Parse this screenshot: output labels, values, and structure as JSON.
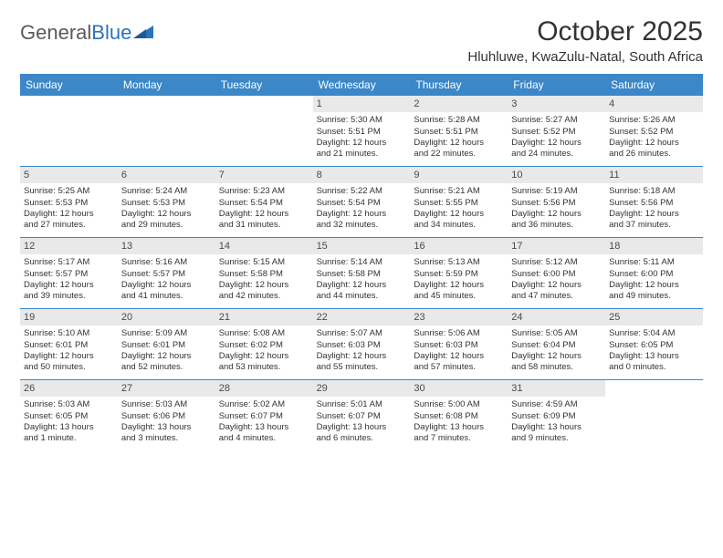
{
  "logo": {
    "text_gray": "General",
    "text_blue": "Blue"
  },
  "header": {
    "month_title": "October 2025",
    "location": "Hluhluwe, KwaZulu-Natal, South Africa"
  },
  "colors": {
    "header_bar": "#3b87c8",
    "daynum_bg": "#e9e9e9",
    "week_border": "#3b87c8",
    "text": "#333333"
  },
  "weekdays": [
    "Sunday",
    "Monday",
    "Tuesday",
    "Wednesday",
    "Thursday",
    "Friday",
    "Saturday"
  ],
  "weeks": [
    [
      null,
      null,
      null,
      {
        "n": "1",
        "sr": "Sunrise: 5:30 AM",
        "ss": "Sunset: 5:51 PM",
        "d1": "Daylight: 12 hours",
        "d2": "and 21 minutes."
      },
      {
        "n": "2",
        "sr": "Sunrise: 5:28 AM",
        "ss": "Sunset: 5:51 PM",
        "d1": "Daylight: 12 hours",
        "d2": "and 22 minutes."
      },
      {
        "n": "3",
        "sr": "Sunrise: 5:27 AM",
        "ss": "Sunset: 5:52 PM",
        "d1": "Daylight: 12 hours",
        "d2": "and 24 minutes."
      },
      {
        "n": "4",
        "sr": "Sunrise: 5:26 AM",
        "ss": "Sunset: 5:52 PM",
        "d1": "Daylight: 12 hours",
        "d2": "and 26 minutes."
      }
    ],
    [
      {
        "n": "5",
        "sr": "Sunrise: 5:25 AM",
        "ss": "Sunset: 5:53 PM",
        "d1": "Daylight: 12 hours",
        "d2": "and 27 minutes."
      },
      {
        "n": "6",
        "sr": "Sunrise: 5:24 AM",
        "ss": "Sunset: 5:53 PM",
        "d1": "Daylight: 12 hours",
        "d2": "and 29 minutes."
      },
      {
        "n": "7",
        "sr": "Sunrise: 5:23 AM",
        "ss": "Sunset: 5:54 PM",
        "d1": "Daylight: 12 hours",
        "d2": "and 31 minutes."
      },
      {
        "n": "8",
        "sr": "Sunrise: 5:22 AM",
        "ss": "Sunset: 5:54 PM",
        "d1": "Daylight: 12 hours",
        "d2": "and 32 minutes."
      },
      {
        "n": "9",
        "sr": "Sunrise: 5:21 AM",
        "ss": "Sunset: 5:55 PM",
        "d1": "Daylight: 12 hours",
        "d2": "and 34 minutes."
      },
      {
        "n": "10",
        "sr": "Sunrise: 5:19 AM",
        "ss": "Sunset: 5:56 PM",
        "d1": "Daylight: 12 hours",
        "d2": "and 36 minutes."
      },
      {
        "n": "11",
        "sr": "Sunrise: 5:18 AM",
        "ss": "Sunset: 5:56 PM",
        "d1": "Daylight: 12 hours",
        "d2": "and 37 minutes."
      }
    ],
    [
      {
        "n": "12",
        "sr": "Sunrise: 5:17 AM",
        "ss": "Sunset: 5:57 PM",
        "d1": "Daylight: 12 hours",
        "d2": "and 39 minutes."
      },
      {
        "n": "13",
        "sr": "Sunrise: 5:16 AM",
        "ss": "Sunset: 5:57 PM",
        "d1": "Daylight: 12 hours",
        "d2": "and 41 minutes."
      },
      {
        "n": "14",
        "sr": "Sunrise: 5:15 AM",
        "ss": "Sunset: 5:58 PM",
        "d1": "Daylight: 12 hours",
        "d2": "and 42 minutes."
      },
      {
        "n": "15",
        "sr": "Sunrise: 5:14 AM",
        "ss": "Sunset: 5:58 PM",
        "d1": "Daylight: 12 hours",
        "d2": "and 44 minutes."
      },
      {
        "n": "16",
        "sr": "Sunrise: 5:13 AM",
        "ss": "Sunset: 5:59 PM",
        "d1": "Daylight: 12 hours",
        "d2": "and 45 minutes."
      },
      {
        "n": "17",
        "sr": "Sunrise: 5:12 AM",
        "ss": "Sunset: 6:00 PM",
        "d1": "Daylight: 12 hours",
        "d2": "and 47 minutes."
      },
      {
        "n": "18",
        "sr": "Sunrise: 5:11 AM",
        "ss": "Sunset: 6:00 PM",
        "d1": "Daylight: 12 hours",
        "d2": "and 49 minutes."
      }
    ],
    [
      {
        "n": "19",
        "sr": "Sunrise: 5:10 AM",
        "ss": "Sunset: 6:01 PM",
        "d1": "Daylight: 12 hours",
        "d2": "and 50 minutes."
      },
      {
        "n": "20",
        "sr": "Sunrise: 5:09 AM",
        "ss": "Sunset: 6:01 PM",
        "d1": "Daylight: 12 hours",
        "d2": "and 52 minutes."
      },
      {
        "n": "21",
        "sr": "Sunrise: 5:08 AM",
        "ss": "Sunset: 6:02 PM",
        "d1": "Daylight: 12 hours",
        "d2": "and 53 minutes."
      },
      {
        "n": "22",
        "sr": "Sunrise: 5:07 AM",
        "ss": "Sunset: 6:03 PM",
        "d1": "Daylight: 12 hours",
        "d2": "and 55 minutes."
      },
      {
        "n": "23",
        "sr": "Sunrise: 5:06 AM",
        "ss": "Sunset: 6:03 PM",
        "d1": "Daylight: 12 hours",
        "d2": "and 57 minutes."
      },
      {
        "n": "24",
        "sr": "Sunrise: 5:05 AM",
        "ss": "Sunset: 6:04 PM",
        "d1": "Daylight: 12 hours",
        "d2": "and 58 minutes."
      },
      {
        "n": "25",
        "sr": "Sunrise: 5:04 AM",
        "ss": "Sunset: 6:05 PM",
        "d1": "Daylight: 13 hours",
        "d2": "and 0 minutes."
      }
    ],
    [
      {
        "n": "26",
        "sr": "Sunrise: 5:03 AM",
        "ss": "Sunset: 6:05 PM",
        "d1": "Daylight: 13 hours",
        "d2": "and 1 minute."
      },
      {
        "n": "27",
        "sr": "Sunrise: 5:03 AM",
        "ss": "Sunset: 6:06 PM",
        "d1": "Daylight: 13 hours",
        "d2": "and 3 minutes."
      },
      {
        "n": "28",
        "sr": "Sunrise: 5:02 AM",
        "ss": "Sunset: 6:07 PM",
        "d1": "Daylight: 13 hours",
        "d2": "and 4 minutes."
      },
      {
        "n": "29",
        "sr": "Sunrise: 5:01 AM",
        "ss": "Sunset: 6:07 PM",
        "d1": "Daylight: 13 hours",
        "d2": "and 6 minutes."
      },
      {
        "n": "30",
        "sr": "Sunrise: 5:00 AM",
        "ss": "Sunset: 6:08 PM",
        "d1": "Daylight: 13 hours",
        "d2": "and 7 minutes."
      },
      {
        "n": "31",
        "sr": "Sunrise: 4:59 AM",
        "ss": "Sunset: 6:09 PM",
        "d1": "Daylight: 13 hours",
        "d2": "and 9 minutes."
      },
      null
    ]
  ]
}
